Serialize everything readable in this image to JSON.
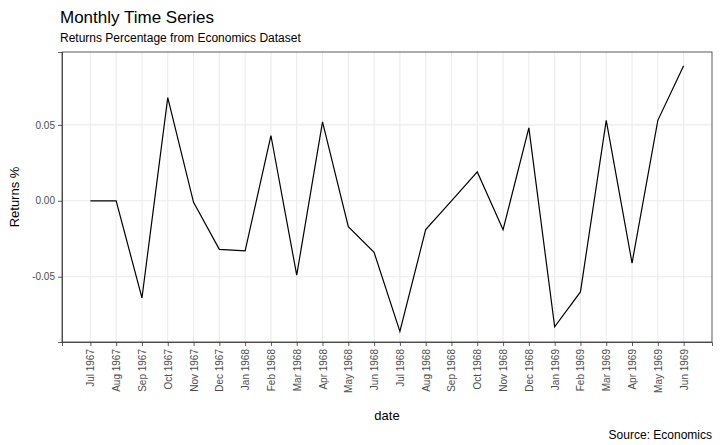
{
  "chart_data": {
    "type": "line",
    "title": "Monthly Time Series",
    "subtitle": "Returns Percentage from Economics Dataset",
    "caption": "Source: Economics",
    "x_label": "date",
    "y_label": "Returns %",
    "categories": [
      "Jul 1967",
      "Aug 1967",
      "Sep 1967",
      "Oct 1967",
      "Nov 1967",
      "Dec 1967",
      "Jan 1968",
      "Feb 1968",
      "Mar 1968",
      "Apr 1968",
      "May 1968",
      "Jun 1968",
      "Jul 1968",
      "Aug 1968",
      "Sep 1968",
      "Oct 1968",
      "Nov 1968",
      "Dec 1968",
      "Jan 1969",
      "Feb 1969",
      "Mar 1969",
      "Apr 1969",
      "May 1969",
      "Jun 1969"
    ],
    "values": [
      0,
      0,
      -0.064,
      0.068,
      -0.001,
      -0.032,
      -0.033,
      0.043,
      -0.049,
      0.052,
      -0.017,
      -0.034,
      -0.086,
      -0.019,
      0,
      0.019,
      -0.019,
      0.048,
      -0.083,
      -0.06,
      0.053,
      -0.041,
      0.053,
      0.089
    ],
    "color": "#000000",
    "ylim": [
      -0.093,
      0.098
    ],
    "yticks": [
      -0.05,
      {
        "value": 0,
        "label": "0.00"
      },
      0.05
    ],
    "grid": true
  }
}
